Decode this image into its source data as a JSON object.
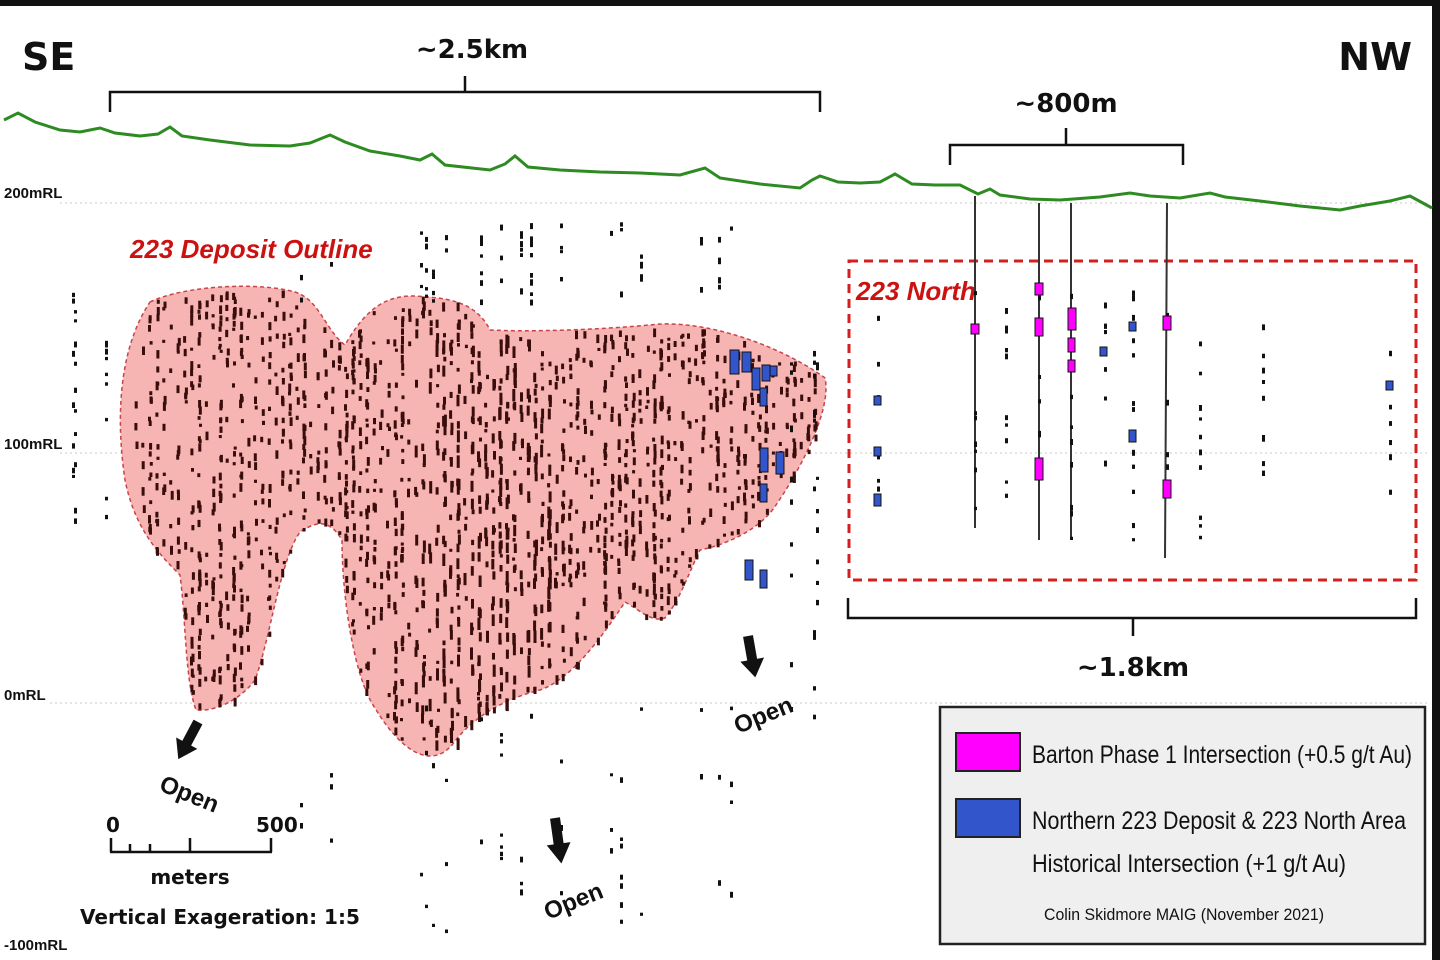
{
  "orientation": {
    "left": "SE",
    "right": "NW"
  },
  "dimensions": [
    {
      "label": "~2.5km"
    },
    {
      "label": "~800m"
    },
    {
      "label": "~1.8km"
    }
  ],
  "rl_labels": [
    "200mRL",
    "100mRL",
    "0mRL",
    "-100mRL"
  ],
  "deposit": {
    "label": "223 Deposit Outline",
    "fill": "#f6b5b2",
    "outline": "#c8434a"
  },
  "north_area": {
    "label": "223 North",
    "outline": "#d41f1f"
  },
  "open_labels": [
    "Open",
    "Open",
    "Open"
  ],
  "scale_bar": {
    "start": "0",
    "end": "500",
    "unit": "meters",
    "note": "Vertical Exageration: 1:5"
  },
  "legend": {
    "items": [
      {
        "color": "#ff00ff",
        "text": "Barton Phase 1 Intersection (+0.5 g/t Au)"
      },
      {
        "color": "#3355cc",
        "text_lines": [
          "Northern 223 Deposit & 223 North Area",
          "Historical Intersection (+1 g/t Au)"
        ]
      }
    ],
    "credit": "Colin Skidmore MAIG (November 2021)"
  },
  "colors": {
    "topography": "#2e8b22",
    "drill_hole": "#111111"
  }
}
